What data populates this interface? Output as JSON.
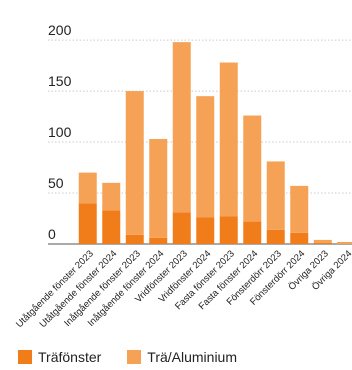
{
  "chart_data": {
    "type": "bar",
    "stacked": true,
    "categories": [
      "Utåtgående fönster 2023",
      "Utåtgående fönster 2024",
      "Inåtgående fönster 2023",
      "Inåtgående fönster 2024",
      "Vridfönster 2023",
      "Vridfönster 2024",
      "Fasta fönster 2023",
      "Fasta fönster 2024",
      "Fönsterdörr 2023",
      "Fönsterdörr 2024",
      "Övriga 2023",
      "Övriga 2024"
    ],
    "series": [
      {
        "name": "Träfönster",
        "color": "#F07D1A",
        "values": [
          40,
          33,
          9,
          6,
          31,
          26,
          27,
          22,
          14,
          11,
          1,
          0
        ]
      },
      {
        "name": "Trä/Aluminium",
        "color": "#F5A257",
        "values": [
          30,
          27,
          141,
          97,
          167,
          119,
          151,
          104,
          67,
          46,
          3,
          2
        ]
      }
    ],
    "yticks": [
      0,
      50,
      100,
      150,
      200
    ],
    "ylim": [
      0,
      205
    ],
    "grid": true,
    "legend_position": "bottom-left"
  }
}
